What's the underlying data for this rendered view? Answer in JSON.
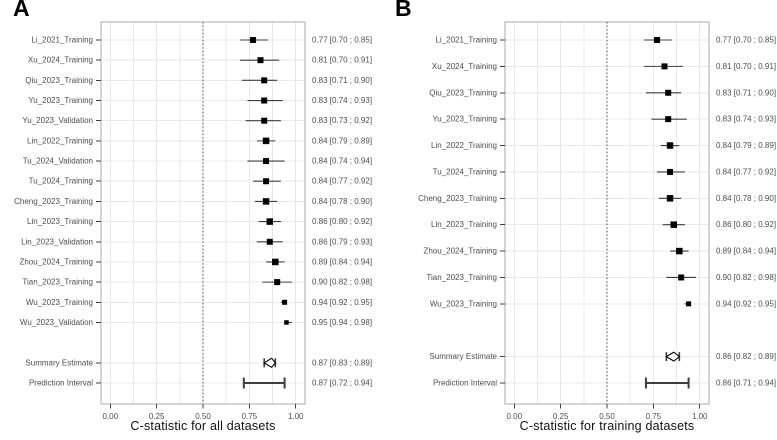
{
  "figure": {
    "colors": {
      "marker": "#000000",
      "ci_line": "#3d3d3d",
      "grid": "#e8e8e8",
      "panel_border": "#a8a8a8",
      "reference_line": "#4d4d4d",
      "tick": "#404040",
      "label_text": "#4d4d4d",
      "axis_title": "#111111",
      "panel_letter": "#000000",
      "summary_fill": "#ffffff"
    }
  },
  "chart_data": [
    {
      "type": "scatter",
      "subtype": "forest",
      "panel_letter": "A",
      "xlabel": "C-statistic for all datasets",
      "xlim": [
        -0.05,
        1.05
      ],
      "x_ticks": [
        0,
        0.25,
        0.5,
        0.75,
        1
      ],
      "x_tick_labels": [
        "0.00",
        "0.25",
        "0.50",
        "0.75",
        "1.00"
      ],
      "reference_line_x": 0.5,
      "grid_step": 0.125,
      "studies": [
        {
          "label": "Li_2021_Training",
          "estimate": 0.77,
          "ci_lower": 0.7,
          "ci_upper": 0.85,
          "display": "0.77 [0.70 ; 0.85]",
          "marker_size": 6
        },
        {
          "label": "Xu_2024_Training",
          "estimate": 0.81,
          "ci_lower": 0.7,
          "ci_upper": 0.91,
          "display": "0.81 [0.70 ; 0.91]",
          "marker_size": 6
        },
        {
          "label": "Qiu_2023_Training",
          "estimate": 0.83,
          "ci_lower": 0.71,
          "ci_upper": 0.9,
          "display": "0.83 [0.71 ; 0.90]",
          "marker_size": 6
        },
        {
          "label": "Yu_2023_Training",
          "estimate": 0.83,
          "ci_lower": 0.74,
          "ci_upper": 0.93,
          "display": "0.83 [0.74 ; 0.93]",
          "marker_size": 6
        },
        {
          "label": "Yu_2023_Validation",
          "estimate": 0.83,
          "ci_lower": 0.73,
          "ci_upper": 0.92,
          "display": "0.83 [0.73 ; 0.92]",
          "marker_size": 6
        },
        {
          "label": "Lin_2022_Training",
          "estimate": 0.84,
          "ci_lower": 0.79,
          "ci_upper": 0.89,
          "display": "0.84 [0.79 ; 0.89]",
          "marker_size": 6.5
        },
        {
          "label": "Tu_2024_Validation",
          "estimate": 0.84,
          "ci_lower": 0.74,
          "ci_upper": 0.94,
          "display": "0.84 [0.74 ; 0.94]",
          "marker_size": 6
        },
        {
          "label": "Tu_2024_Training",
          "estimate": 0.84,
          "ci_lower": 0.77,
          "ci_upper": 0.92,
          "display": "0.84 [0.77 ; 0.92]",
          "marker_size": 6
        },
        {
          "label": "Cheng_2023_Training",
          "estimate": 0.84,
          "ci_lower": 0.78,
          "ci_upper": 0.9,
          "display": "0.84 [0.78 ; 0.90]",
          "marker_size": 6.5
        },
        {
          "label": "Lin_2023_Training",
          "estimate": 0.86,
          "ci_lower": 0.8,
          "ci_upper": 0.92,
          "display": "0.86 [0.80 ; 0.92]",
          "marker_size": 6.5
        },
        {
          "label": "Lin_2023_Validation",
          "estimate": 0.86,
          "ci_lower": 0.79,
          "ci_upper": 0.93,
          "display": "0.86 [0.79 ; 0.93]",
          "marker_size": 6
        },
        {
          "label": "Zhou_2024_Training",
          "estimate": 0.89,
          "ci_lower": 0.84,
          "ci_upper": 0.94,
          "display": "0.89 [0.84 ; 0.94]",
          "marker_size": 6.5
        },
        {
          "label": "Tian_2023_Training",
          "estimate": 0.9,
          "ci_lower": 0.82,
          "ci_upper": 0.98,
          "display": "0.90 [0.82 ; 0.98]",
          "marker_size": 6
        },
        {
          "label": "Wu_2023_Training",
          "estimate": 0.94,
          "ci_lower": 0.92,
          "ci_upper": 0.95,
          "display": "0.94 [0.92 ; 0.95]",
          "marker_size": 5
        },
        {
          "label": "Wu_2023_Validation",
          "estimate": 0.95,
          "ci_lower": 0.94,
          "ci_upper": 0.98,
          "display": "0.95 [0.94 ; 0.98]",
          "marker_size": 4.5
        }
      ],
      "summary": {
        "label": "Summary Estimate",
        "estimate": 0.87,
        "ci_lower": 0.83,
        "ci_upper": 0.89,
        "display": "0.87 [0.83 ; 0.89]"
      },
      "prediction": {
        "label": "Prediction Interval",
        "estimate": 0.87,
        "ci_lower": 0.72,
        "ci_upper": 0.94,
        "display": "0.87 [0.72 ; 0.94]"
      }
    },
    {
      "type": "scatter",
      "subtype": "forest",
      "panel_letter": "B",
      "xlabel": "C-statistic for training datasets",
      "xlim": [
        -0.05,
        1.05
      ],
      "x_ticks": [
        0,
        0.25,
        0.5,
        0.75,
        1
      ],
      "x_tick_labels": [
        "0.00",
        "0.25",
        "0.50",
        "0.75",
        "1.00"
      ],
      "reference_line_x": 0.5,
      "grid_step": 0.125,
      "studies": [
        {
          "label": "Li_2021_Training",
          "estimate": 0.77,
          "ci_lower": 0.7,
          "ci_upper": 0.85,
          "display": "0.77 [0.70 ; 0.85]",
          "marker_size": 6
        },
        {
          "label": "Xu_2024_Training",
          "estimate": 0.81,
          "ci_lower": 0.7,
          "ci_upper": 0.91,
          "display": "0.81 [0.70 ; 0.91]",
          "marker_size": 6
        },
        {
          "label": "Qiu_2023_Training",
          "estimate": 0.83,
          "ci_lower": 0.71,
          "ci_upper": 0.9,
          "display": "0.83 [0.71 ; 0.90]",
          "marker_size": 6
        },
        {
          "label": "Yu_2023_Training",
          "estimate": 0.83,
          "ci_lower": 0.74,
          "ci_upper": 0.93,
          "display": "0.83 [0.74 ; 0.93]",
          "marker_size": 6
        },
        {
          "label": "Lin_2022_Training",
          "estimate": 0.84,
          "ci_lower": 0.79,
          "ci_upper": 0.89,
          "display": "0.84 [0.79 ; 0.89]",
          "marker_size": 6.5
        },
        {
          "label": "Tu_2024_Training",
          "estimate": 0.84,
          "ci_lower": 0.77,
          "ci_upper": 0.92,
          "display": "0.84 [0.77 ; 0.92]",
          "marker_size": 6
        },
        {
          "label": "Cheng_2023_Training",
          "estimate": 0.84,
          "ci_lower": 0.78,
          "ci_upper": 0.9,
          "display": "0.84 [0.78 ; 0.90]",
          "marker_size": 6.5
        },
        {
          "label": "Lin_2023_Training",
          "estimate": 0.86,
          "ci_lower": 0.8,
          "ci_upper": 0.92,
          "display": "0.86 [0.80 ; 0.92]",
          "marker_size": 6.5
        },
        {
          "label": "Zhou_2024_Training",
          "estimate": 0.89,
          "ci_lower": 0.84,
          "ci_upper": 0.94,
          "display": "0.89 [0.84 ; 0.94]",
          "marker_size": 6.5
        },
        {
          "label": "Tian_2023_Training",
          "estimate": 0.9,
          "ci_lower": 0.82,
          "ci_upper": 0.98,
          "display": "0.90 [0.82 ; 0.98]",
          "marker_size": 6
        },
        {
          "label": "Wu_2023_Training",
          "estimate": 0.94,
          "ci_lower": 0.92,
          "ci_upper": 0.95,
          "display": "0.94 [0.92 ; 0.95]",
          "marker_size": 5
        }
      ],
      "summary": {
        "label": "Summary Estimate",
        "estimate": 0.86,
        "ci_lower": 0.82,
        "ci_upper": 0.89,
        "display": "0.86 [0.82 ; 0.89]"
      },
      "prediction": {
        "label": "Prediction Interval",
        "estimate": 0.86,
        "ci_lower": 0.71,
        "ci_upper": 0.94,
        "display": "0.86 [0.71 ; 0.94]"
      }
    }
  ]
}
